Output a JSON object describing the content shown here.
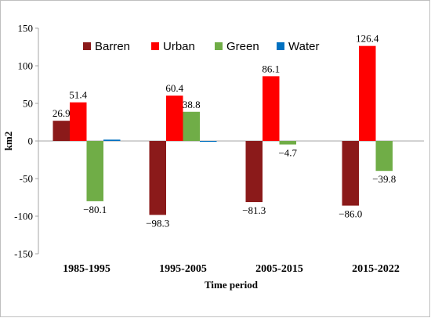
{
  "chart_data": {
    "type": "bar",
    "categories": [
      "1985-1995",
      "1995-2005",
      "2005-2015",
      "2015-2022"
    ],
    "series": [
      {
        "name": "Barren",
        "color": "#8B1A1A",
        "values": [
          26.9,
          -98.3,
          -81.3,
          -86.0
        ],
        "labels": [
          "26.9",
          "−98.3",
          "−81.3",
          "−86.0"
        ]
      },
      {
        "name": "Urban",
        "color": "#FF0000",
        "values": [
          51.4,
          60.4,
          86.1,
          126.4
        ],
        "labels": [
          "51.4",
          "60.4",
          "86.1",
          "126.4"
        ]
      },
      {
        "name": "Green",
        "color": "#70AD47",
        "values": [
          -80.1,
          38.8,
          -4.7,
          -39.8
        ],
        "labels": [
          "−80.1",
          "38.8",
          "−4.7",
          "−39.8"
        ]
      },
      {
        "name": "Water",
        "color": "#0070C0",
        "values": [
          1.8,
          -0.5,
          0.0,
          0.0
        ],
        "labels": [
          "",
          "",
          "",
          ""
        ]
      }
    ],
    "xlabel": "Time period",
    "ylabel": "km2",
    "ylim": [
      -150,
      150
    ],
    "yticks": [
      "150",
      "100",
      "50",
      "0",
      "-50",
      "-100",
      "-150"
    ],
    "ytick_values": [
      150,
      100,
      50,
      0,
      -50,
      -100,
      -150
    ],
    "legend_position": "top",
    "grid": false
  }
}
